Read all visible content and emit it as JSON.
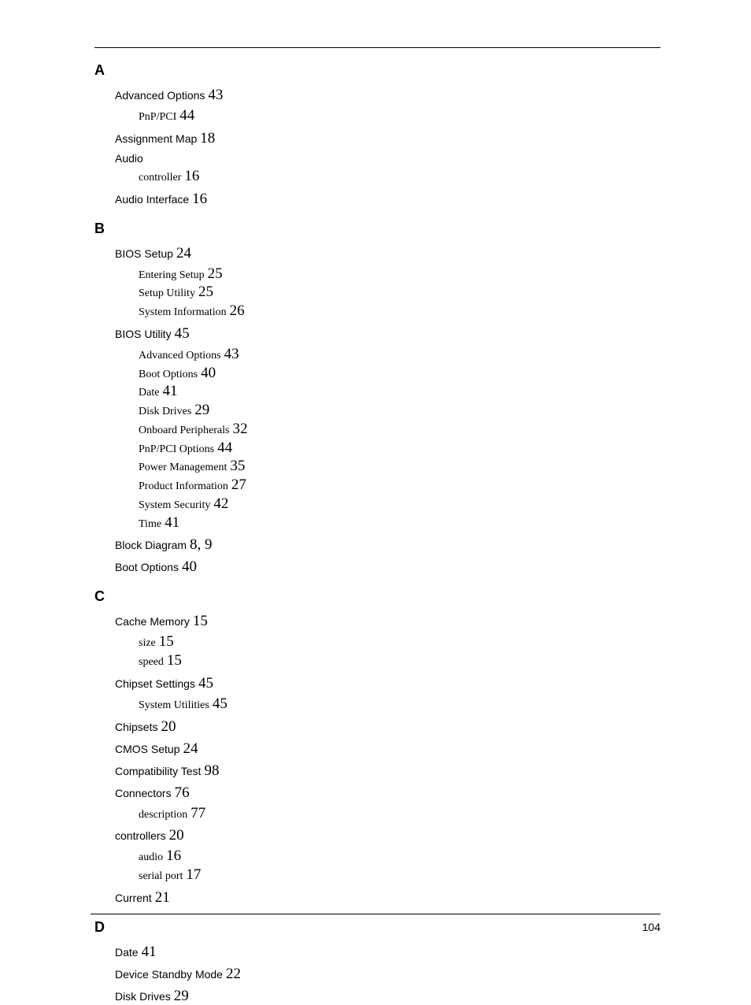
{
  "page_number": "104",
  "sections": [
    {
      "heading": "A",
      "entries": [
        {
          "term": "Advanced Options",
          "pages": "43",
          "subs": [
            {
              "term": "PnP/PCI",
              "pages": "44"
            }
          ]
        },
        {
          "term": "Assignment Map",
          "pages": "18"
        },
        {
          "term": "Audio",
          "pages": "",
          "subs": [
            {
              "term": "controller",
              "pages": "16"
            }
          ]
        },
        {
          "term": "Audio Interface",
          "pages": "16"
        }
      ]
    },
    {
      "heading": "B",
      "entries": [
        {
          "term": "BIOS Setup",
          "pages": "24",
          "subs": [
            {
              "term": "Entering Setup",
              "pages": "25"
            },
            {
              "term": "Setup Utility",
              "pages": "25"
            },
            {
              "term": "System Information",
              "pages": "26"
            }
          ]
        },
        {
          "term": "BIOS Utility",
          "pages": "45",
          "subs": [
            {
              "term": "Advanced Options",
              "pages": "43"
            },
            {
              "term": "Boot Options",
              "pages": "40"
            },
            {
              "term": "Date",
              "pages": "41"
            },
            {
              "term": "Disk Drives",
              "pages": "29"
            },
            {
              "term": "Onboard Peripherals",
              "pages": "32"
            },
            {
              "term": "PnP/PCI Options",
              "pages": "44"
            },
            {
              "term": "Power Management",
              "pages": "35"
            },
            {
              "term": "Product Information",
              "pages": "27"
            },
            {
              "term": "System Security",
              "pages": "42"
            },
            {
              "term": "Time",
              "pages": "41"
            }
          ]
        },
        {
          "term": "Block Diagram",
          "pages": "8, 9"
        },
        {
          "term": "Boot Options",
          "pages": "40"
        }
      ]
    },
    {
      "heading": "C",
      "entries": [
        {
          "term": "Cache Memory",
          "pages": "15",
          "subs": [
            {
              "term": "size",
              "pages": "15"
            },
            {
              "term": "speed",
              "pages": "15"
            }
          ]
        },
        {
          "term": "Chipset Settings",
          "pages": "45",
          "subs": [
            {
              "term": "System Utilities",
              "pages": "45"
            }
          ]
        },
        {
          "term": "Chipsets",
          "pages": "20"
        },
        {
          "term": "CMOS Setup",
          "pages": "24"
        },
        {
          "term": "Compatibility Test",
          "pages": "98"
        },
        {
          "term": "Connectors",
          "pages": "76",
          "subs": [
            {
              "term": "description",
              "pages": "77"
            }
          ]
        },
        {
          "term": "controllers",
          "pages": "20",
          "subs": [
            {
              "term": "audio",
              "pages": "16"
            },
            {
              "term": "serial port",
              "pages": "17"
            }
          ]
        },
        {
          "term": "Current",
          "pages": "21"
        }
      ]
    },
    {
      "heading": "D",
      "entries": [
        {
          "term": "Date",
          "pages": "41"
        },
        {
          "term": "Device Standby Mode",
          "pages": "22"
        },
        {
          "term": "Disk Drives",
          "pages": "29"
        }
      ]
    }
  ]
}
